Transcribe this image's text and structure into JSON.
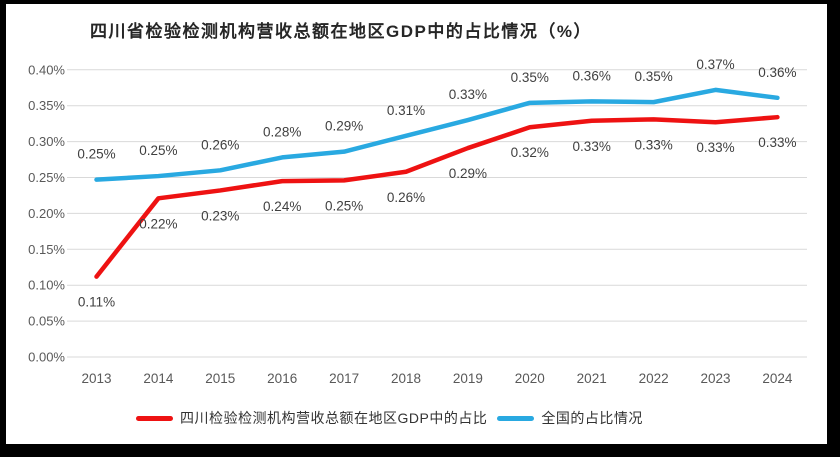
{
  "colors": {
    "frame": "#000000",
    "background": "#ffffff",
    "gridline": "#d9d9d9",
    "tick_text": "#595959",
    "data_label_text": "#404040",
    "title_text": "#262626",
    "series_red": "#ee1212",
    "series_blue": "#29a9e1"
  },
  "chart_data": {
    "type": "line",
    "title": "四川省检验检测机构营收总额在地区GDP中的占比情况（%）",
    "categories": [
      "2013",
      "2014",
      "2015",
      "2016",
      "2017",
      "2018",
      "2019",
      "2020",
      "2021",
      "2022",
      "2023",
      "2024"
    ],
    "xlabel": "",
    "ylabel": "",
    "ylim": [
      0,
      0.4
    ],
    "y_tick_step": 0.05,
    "y_tick_labels": [
      "0.00%",
      "0.05%",
      "0.10%",
      "0.15%",
      "0.20%",
      "0.25%",
      "0.30%",
      "0.35%",
      "0.40%"
    ],
    "grid": "horizontal",
    "legend_position": "bottom",
    "series": [
      {
        "name": "四川检验检测机构营收总额在地区GDP中的占比",
        "color": "#ee1212",
        "label_position": "below",
        "values": [
          0.112,
          0.221,
          0.232,
          0.245,
          0.246,
          0.258,
          0.291,
          0.32,
          0.329,
          0.331,
          0.327,
          0.334
        ],
        "labels": [
          "0.11%",
          "0.22%",
          "0.23%",
          "0.24%",
          "0.25%",
          "0.26%",
          "0.29%",
          "0.32%",
          "0.33%",
          "0.33%",
          "0.33%",
          "0.33%"
        ]
      },
      {
        "name": "全国的占比情况",
        "color": "#29a9e1",
        "label_position": "above",
        "values": [
          0.247,
          0.252,
          0.26,
          0.278,
          0.286,
          0.308,
          0.33,
          0.354,
          0.356,
          0.355,
          0.372,
          0.361
        ],
        "labels": [
          "0.25%",
          "0.25%",
          "0.26%",
          "0.28%",
          "0.29%",
          "0.31%",
          "0.33%",
          "0.35%",
          "0.36%",
          "0.35%",
          "0.37%",
          "0.36%"
        ]
      }
    ]
  }
}
